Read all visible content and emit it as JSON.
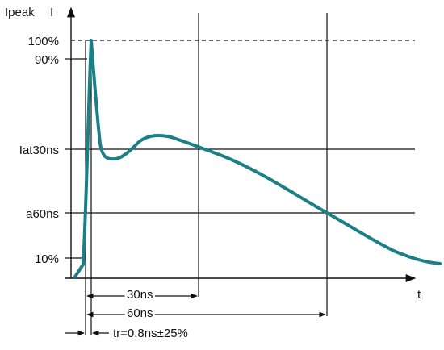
{
  "colors": {
    "curve": "#1a7f86",
    "ink": "#111111"
  },
  "labels": {
    "y_axis_title": "Ipeak",
    "y_axis_marker": "I",
    "x_axis_title": "t",
    "level_100": "100%",
    "level_90": "90%",
    "level_30ns": "Iat30ns",
    "level_60ns": "a60ns",
    "level_10": "10%",
    "span_30ns": "30ns",
    "span_60ns": "60ns",
    "rise_time": "tr=0.8ns±25%"
  }
}
